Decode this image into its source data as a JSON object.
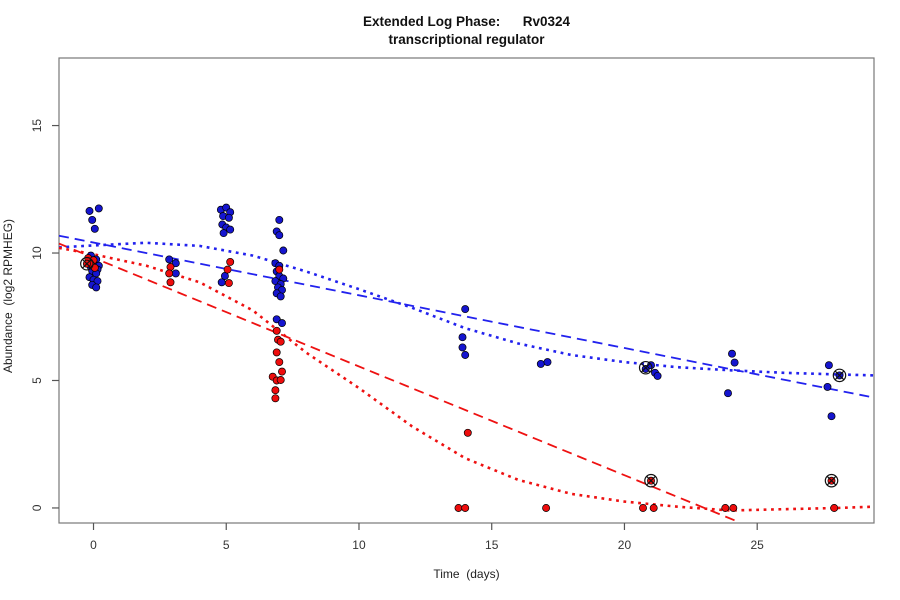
{
  "figure": {
    "title_line1": "Extended Log Phase:      Rv0324",
    "title_line2": "transcriptional regulator",
    "xlabel": "Time  (days)",
    "ylabel": "Abundance  (log2 RPMHEG)"
  },
  "chart_data": {
    "type": "scatter",
    "title": "Extended Log Phase: Rv0324 transcriptional regulator",
    "xlabel": "Time (days)",
    "ylabel": "Abundance (log2 RPMHEG)",
    "xlim": [
      -1.3,
      29.4
    ],
    "ylim": [
      -0.59,
      17.65
    ],
    "xticks": [
      0,
      5,
      10,
      15,
      20,
      25
    ],
    "yticks": [
      0,
      5,
      10,
      15
    ],
    "grid": false,
    "legend": "none",
    "colors": {
      "blue_points": "#1515CF",
      "red_points": "#EE0D0D",
      "blue_line": "#2222EE",
      "red_line": "#EE1111",
      "axis": "#777777",
      "tick_text": "#333333"
    },
    "series": [
      {
        "name": "blue-condition",
        "color": "#1515CF",
        "points": [
          [
            -0.15,
            11.65
          ],
          [
            0.2,
            11.75
          ],
          [
            -0.05,
            11.3
          ],
          [
            0.05,
            10.95
          ],
          [
            -0.1,
            9.9
          ],
          [
            0.1,
            9.75
          ],
          [
            0.05,
            9.55
          ],
          [
            0.2,
            9.5
          ],
          [
            -0.1,
            9.45
          ],
          [
            0.15,
            9.35
          ],
          [
            -0.05,
            9.3
          ],
          [
            0.1,
            9.2
          ],
          [
            -0.15,
            9.05
          ],
          [
            0,
            8.95
          ],
          [
            0.15,
            8.9
          ],
          [
            -0.05,
            8.75
          ],
          [
            0.1,
            8.65
          ],
          [
            2.85,
            9.75
          ],
          [
            3.1,
            9.6
          ],
          [
            3.1,
            9.2
          ],
          [
            4.8,
            11.7
          ],
          [
            5.0,
            11.78
          ],
          [
            5.15,
            11.6
          ],
          [
            4.88,
            11.45
          ],
          [
            5.1,
            11.38
          ],
          [
            4.85,
            11.12
          ],
          [
            5.0,
            11.0
          ],
          [
            5.15,
            10.92
          ],
          [
            4.9,
            10.78
          ],
          [
            4.95,
            9.1
          ],
          [
            4.83,
            8.85
          ],
          [
            7.0,
            11.3
          ],
          [
            6.9,
            10.85
          ],
          [
            7.0,
            10.7
          ],
          [
            7.15,
            10.1
          ],
          [
            6.85,
            9.6
          ],
          [
            7.0,
            9.5
          ],
          [
            6.9,
            9.28
          ],
          [
            7.0,
            9.1
          ],
          [
            7.15,
            9.0
          ],
          [
            6.85,
            8.9
          ],
          [
            7.05,
            8.78
          ],
          [
            6.95,
            8.65
          ],
          [
            7.1,
            8.55
          ],
          [
            6.9,
            8.42
          ],
          [
            7.05,
            8.3
          ],
          [
            6.9,
            7.4
          ],
          [
            7.1,
            7.25
          ],
          [
            14.0,
            7.8
          ],
          [
            13.9,
            6.7
          ],
          [
            13.9,
            6.3
          ],
          [
            14.0,
            6.0
          ],
          [
            16.85,
            5.65
          ],
          [
            17.1,
            5.72
          ],
          [
            20.8,
            5.45
          ],
          [
            21.0,
            5.6
          ],
          [
            21.15,
            5.3
          ],
          [
            21.25,
            5.18
          ],
          [
            24.05,
            6.05
          ],
          [
            24.15,
            5.7
          ],
          [
            23.9,
            4.5
          ],
          [
            27.7,
            5.6
          ],
          [
            28.1,
            5.2
          ],
          [
            27.65,
            4.75
          ],
          [
            27.8,
            3.6
          ]
        ]
      },
      {
        "name": "red-condition",
        "color": "#EE0D0D",
        "points": [
          [
            -0.2,
            9.8
          ],
          [
            0.0,
            9.72
          ],
          [
            -0.1,
            9.55
          ],
          [
            -0.25,
            9.58
          ],
          [
            0.05,
            9.42
          ],
          [
            2.9,
            9.45
          ],
          [
            2.85,
            9.2
          ],
          [
            2.9,
            8.85
          ],
          [
            5.15,
            9.65
          ],
          [
            5.05,
            9.35
          ],
          [
            5.1,
            8.82
          ],
          [
            7.0,
            9.35
          ],
          [
            6.9,
            6.95
          ],
          [
            6.95,
            6.6
          ],
          [
            7.05,
            6.52
          ],
          [
            6.9,
            6.1
          ],
          [
            7.0,
            5.72
          ],
          [
            7.1,
            5.35
          ],
          [
            6.75,
            5.15
          ],
          [
            6.9,
            5.0
          ],
          [
            7.05,
            5.02
          ],
          [
            6.85,
            4.62
          ],
          [
            6.85,
            4.3
          ],
          [
            14.1,
            2.95
          ],
          [
            13.75,
            0
          ],
          [
            14.0,
            0
          ],
          [
            17.05,
            0
          ],
          [
            21.0,
            1.07
          ],
          [
            20.7,
            0
          ],
          [
            21.1,
            0
          ],
          [
            23.8,
            0
          ],
          [
            24.1,
            0
          ],
          [
            27.8,
            1.07
          ],
          [
            27.9,
            0
          ]
        ]
      }
    ],
    "flagged_points": {
      "marker": "circle-x",
      "color": "#111111",
      "points": [
        [
          -0.25,
          9.58
        ],
        [
          20.8,
          5.5
        ],
        [
          21.0,
          1.07
        ],
        [
          28.1,
          5.2
        ],
        [
          27.8,
          1.07
        ]
      ]
    },
    "trend_lines": [
      {
        "name": "blue-dashed-linear-fit",
        "color": "#2222EE",
        "style": "dashed",
        "points": [
          [
            -1.3,
            10.68
          ],
          [
            29.4,
            4.33
          ]
        ]
      },
      {
        "name": "red-dashed-linear-fit",
        "color": "#EE1111",
        "style": "dashed",
        "points": [
          [
            -1.3,
            10.37
          ],
          [
            24.35,
            -0.57
          ]
        ]
      },
      {
        "name": "blue-dotted-smooth-fit",
        "color": "#2222EE",
        "style": "dotted",
        "points": [
          [
            -1.3,
            10.22
          ],
          [
            0,
            10.3
          ],
          [
            2,
            10.4
          ],
          [
            4,
            10.28
          ],
          [
            6,
            9.9
          ],
          [
            8,
            9.28
          ],
          [
            10,
            8.58
          ],
          [
            12,
            7.85
          ],
          [
            14,
            7.05
          ],
          [
            16,
            6.45
          ],
          [
            18,
            6.0
          ],
          [
            20,
            5.72
          ],
          [
            22,
            5.52
          ],
          [
            24,
            5.4
          ],
          [
            26,
            5.3
          ],
          [
            28,
            5.24
          ],
          [
            29.4,
            5.2
          ]
        ]
      },
      {
        "name": "red-dotted-smooth-fit",
        "color": "#EE1111",
        "style": "dotted",
        "points": [
          [
            -1.3,
            10.2
          ],
          [
            0,
            9.95
          ],
          [
            2,
            9.5
          ],
          [
            4,
            8.85
          ],
          [
            6,
            7.75
          ],
          [
            8,
            6.1
          ],
          [
            10,
            4.7
          ],
          [
            12,
            3.2
          ],
          [
            14,
            1.95
          ],
          [
            16,
            1.1
          ],
          [
            18,
            0.55
          ],
          [
            20,
            0.25
          ],
          [
            22,
            0.05
          ],
          [
            24,
            -0.1
          ],
          [
            26,
            -0.05
          ],
          [
            28,
            0.0
          ],
          [
            29.4,
            0.05
          ]
        ]
      }
    ]
  }
}
